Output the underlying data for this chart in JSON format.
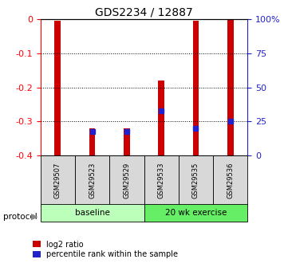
{
  "title": "GDS2234 / 12887",
  "samples": [
    "GSM29507",
    "GSM29523",
    "GSM29529",
    "GSM29533",
    "GSM29535",
    "GSM29536"
  ],
  "log2_ratio": [
    -0.005,
    -0.32,
    -0.32,
    -0.18,
    -0.005,
    -0.002
  ],
  "bar_bottoms": [
    -0.4,
    -0.4,
    -0.4,
    -0.4,
    -0.4,
    -0.4
  ],
  "percentile_rank_mapped": [
    null,
    -0.33,
    -0.33,
    -0.27,
    -0.32,
    -0.3
  ],
  "ylim_left": [
    -0.4,
    0.0
  ],
  "ylim_right": [
    0,
    100
  ],
  "left_ticks": [
    0,
    -0.1,
    -0.2,
    -0.3,
    -0.4
  ],
  "right_ticks": [
    0,
    25,
    50,
    75,
    100
  ],
  "right_tick_labels": [
    "0",
    "25",
    "50",
    "75",
    "100%"
  ],
  "bar_color": "#cc0000",
  "blue_color": "#2222cc",
  "protocol_groups": [
    {
      "label": "baseline",
      "start": 0,
      "end": 3,
      "color": "#bbffbb"
    },
    {
      "label": "20 wk exercise",
      "start": 3,
      "end": 6,
      "color": "#66ee66"
    }
  ],
  "protocol_label": "protocol",
  "legend_entries": [
    "log2 ratio",
    "percentile rank within the sample"
  ],
  "bar_width": 0.18,
  "title_fontsize": 10,
  "sample_box_color": "#d8d8d8"
}
